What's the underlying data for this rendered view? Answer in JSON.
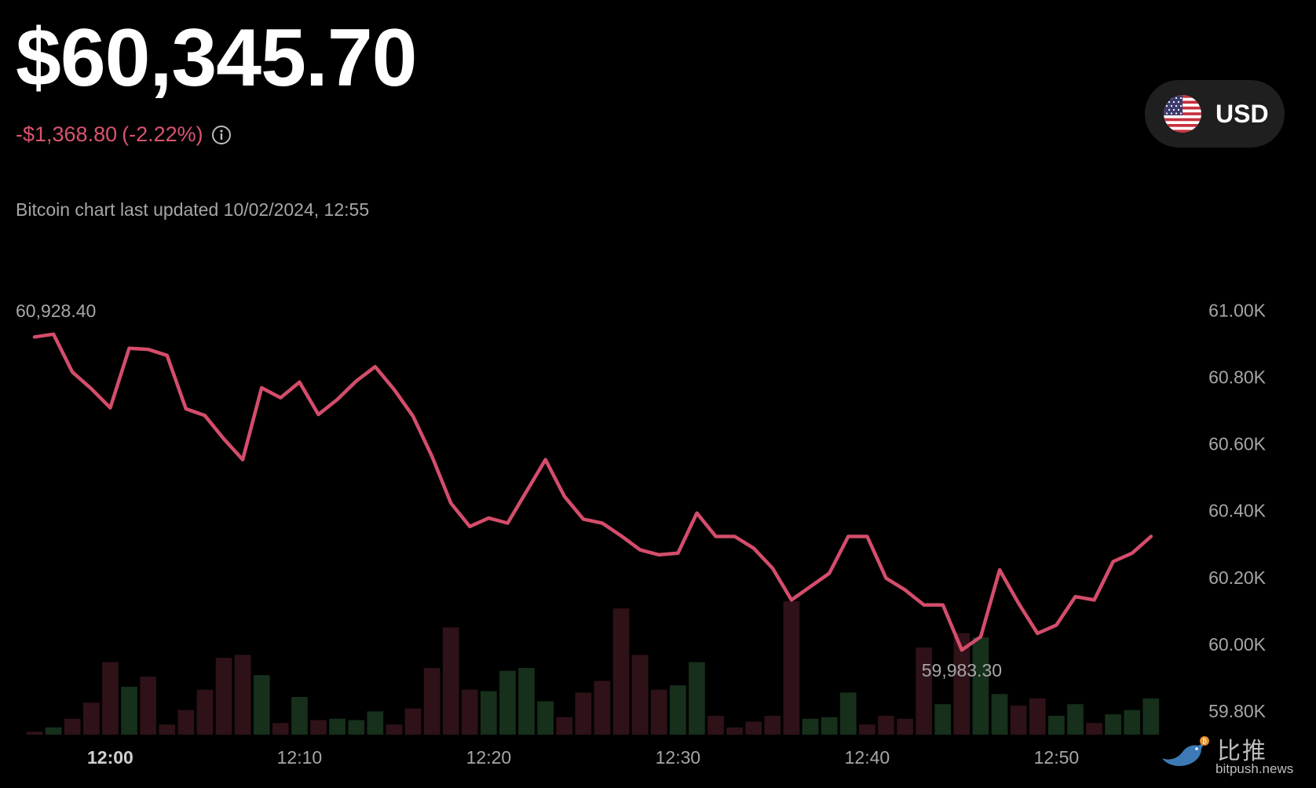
{
  "header": {
    "price": "$60,345.70",
    "change_amount": "-$1,368.80",
    "change_percent": "(-2.22%)",
    "info_icon": "info-icon",
    "currency_label": "USD",
    "currency_flag_icon": "us-flag-icon",
    "updated_text": "Bitcoin chart last updated 10/02/2024, 12:55"
  },
  "colors": {
    "line": "#d44d6b",
    "change_negative": "#d9546e",
    "volume_up": "#16301b",
    "volume_down": "#2e1218",
    "axis_text": "#a6a6a6",
    "background": "#000000"
  },
  "chart_data": {
    "type": "line",
    "title": "",
    "xlabel": "",
    "ylabel": "",
    "x_ticks": [
      "12:00",
      "12:10",
      "12:20",
      "12:30",
      "12:40",
      "12:50"
    ],
    "x_tick_minutes": [
      0,
      10,
      20,
      30,
      40,
      50
    ],
    "x_tick_bold": [
      true,
      false,
      false,
      false,
      false,
      false
    ],
    "y_ticks": [
      "61.00K",
      "60.80K",
      "60.60K",
      "60.40K",
      "60.20K",
      "60.00K",
      "59.80K"
    ],
    "y_tick_values": [
      61000,
      60800,
      60600,
      60400,
      60200,
      60000,
      59800
    ],
    "ylim": [
      59730,
      61050
    ],
    "x_range_minutes": [
      -4.5,
      56.5
    ],
    "grid": false,
    "annotations": [
      {
        "text": "60,928.40",
        "point_index": 1,
        "position": "above"
      },
      {
        "text": "59,983.30",
        "point_index": 49,
        "position": "below"
      }
    ],
    "series": [
      {
        "x": [
          -4,
          -3,
          -2,
          -1,
          0,
          1,
          2,
          3,
          4,
          5,
          6,
          7,
          8,
          9,
          10,
          11,
          12,
          13,
          14,
          15,
          16,
          17,
          18,
          19,
          20,
          21,
          22,
          23,
          24,
          25,
          26,
          27,
          28,
          29,
          30,
          31,
          32,
          33,
          34,
          35,
          36,
          37,
          38,
          39,
          40,
          41,
          42,
          43,
          44,
          45,
          46,
          47,
          48,
          49,
          50,
          51,
          52,
          53,
          54,
          55
        ],
        "values": [
          60920,
          60928.4,
          60815,
          60765,
          60708,
          60886,
          60883,
          60865,
          60705,
          60685,
          60615,
          60553,
          60768,
          60738,
          60785,
          60688,
          60733,
          60788,
          60831,
          60763,
          60683,
          60563,
          60423,
          60353,
          60378,
          60363,
          60458,
          60553,
          60443,
          60375,
          60363,
          60325,
          60283,
          60268,
          60273,
          60393,
          60323,
          60323,
          60288,
          60228,
          60133,
          60173,
          60213,
          60323,
          60323,
          60198,
          60163,
          60118,
          60118,
          59983.3,
          60023,
          60223,
          60123,
          60033,
          60058,
          60143,
          60133,
          60248,
          60273,
          60323
        ]
      }
    ],
    "volume": {
      "values": [
        2,
        5,
        11,
        22,
        50,
        33,
        40,
        7,
        17,
        31,
        53,
        55,
        41,
        8,
        26,
        10,
        11,
        10,
        16,
        7,
        18,
        46,
        74,
        31,
        30,
        44,
        46,
        23,
        12,
        29,
        37,
        87,
        55,
        31,
        34,
        50,
        13,
        5,
        9,
        13,
        92,
        11,
        12,
        29,
        7,
        13,
        11,
        60,
        21,
        70,
        67,
        28,
        20,
        25,
        13,
        21,
        8,
        14,
        17,
        25
      ],
      "direction": [
        "down",
        "up",
        "down",
        "down",
        "down",
        "up",
        "down",
        "down",
        "down",
        "down",
        "down",
        "down",
        "up",
        "down",
        "up",
        "down",
        "up",
        "up",
        "up",
        "down",
        "down",
        "down",
        "down",
        "down",
        "up",
        "up",
        "up",
        "up",
        "down",
        "down",
        "down",
        "down",
        "down",
        "down",
        "up",
        "up",
        "down",
        "down",
        "down",
        "down",
        "down",
        "up",
        "up",
        "up",
        "down",
        "down",
        "down",
        "down",
        "up",
        "down",
        "up",
        "up",
        "down",
        "down",
        "up",
        "up",
        "down",
        "up",
        "up",
        "up"
      ]
    }
  },
  "watermark": {
    "cn_text": "比推",
    "en_text": "bitpush.news",
    "icon": "bird-icon"
  }
}
